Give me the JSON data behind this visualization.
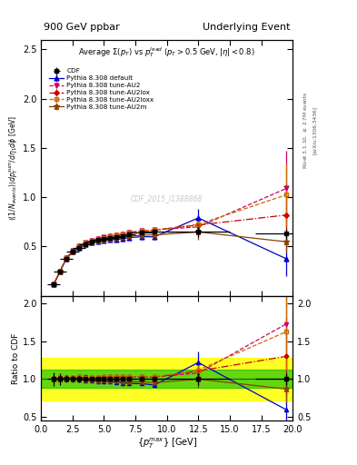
{
  "title_left": "900 GeV ppbar",
  "title_right": "Underlying Event",
  "plot_title": "Average $\\Sigma(p_T)$ vs $p_T^{lead}$ ($p_T > 0.5$ GeV, $|\\eta| < 0.8$)",
  "xlabel": "$\\{p_T^{max}\\}$ [GeV]",
  "ylabel": "$\\langle(1/N_{events})\\rangle dp_T^{sum}/d\\eta_1 d\\phi$ [GeV]",
  "ylabel_ratio": "Ratio to CDF",
  "right_label1": "Rivet 3.1.10, $\\geq$ 2.7M events",
  "right_label2": "[arXiv:1306.3436]",
  "watermark": "CDF_2015_I1388868",
  "ylim_main": [
    0.0,
    2.6
  ],
  "ylim_ratio": [
    0.45,
    2.1
  ],
  "xlim": [
    0,
    20
  ],
  "yticks_main": [
    0.5,
    1.0,
    1.5,
    2.0,
    2.5
  ],
  "yticks_ratio": [
    0.5,
    1.0,
    1.5,
    2.0
  ],
  "cdf_x": [
    1.0,
    1.5,
    2.0,
    2.5,
    3.0,
    3.5,
    4.0,
    4.5,
    5.0,
    5.5,
    6.0,
    6.5,
    7.0,
    8.0,
    9.0,
    12.5,
    19.5
  ],
  "cdf_y": [
    0.115,
    0.245,
    0.375,
    0.445,
    0.49,
    0.525,
    0.55,
    0.565,
    0.575,
    0.585,
    0.595,
    0.61,
    0.625,
    0.638,
    0.648,
    0.648,
    0.63
  ],
  "cdf_yerr": [
    0.01,
    0.018,
    0.018,
    0.018,
    0.018,
    0.018,
    0.018,
    0.018,
    0.018,
    0.018,
    0.018,
    0.018,
    0.018,
    0.018,
    0.018,
    0.048,
    0.048
  ],
  "cdf_xerr": [
    0.5,
    0.5,
    0.5,
    0.5,
    0.5,
    0.5,
    0.5,
    0.5,
    0.5,
    0.5,
    0.5,
    0.5,
    0.5,
    1.0,
    1.0,
    2.5,
    2.5
  ],
  "py_default_x": [
    1.0,
    1.5,
    2.0,
    2.5,
    3.0,
    3.5,
    4.0,
    4.5,
    5.0,
    5.5,
    6.0,
    6.5,
    7.0,
    8.0,
    9.0,
    12.5,
    19.5
  ],
  "py_default_y": [
    0.115,
    0.245,
    0.375,
    0.445,
    0.488,
    0.518,
    0.538,
    0.55,
    0.558,
    0.565,
    0.572,
    0.58,
    0.59,
    0.6,
    0.598,
    0.79,
    0.375
  ],
  "py_default_yerr": [
    0.003,
    0.006,
    0.006,
    0.006,
    0.006,
    0.006,
    0.006,
    0.006,
    0.006,
    0.006,
    0.006,
    0.006,
    0.006,
    0.01,
    0.012,
    0.095,
    0.175
  ],
  "py_au2_x": [
    1.0,
    1.5,
    2.0,
    2.5,
    3.0,
    3.5,
    4.0,
    4.5,
    5.0,
    5.5,
    6.0,
    6.5,
    7.0,
    8.0,
    9.0,
    12.5,
    19.5
  ],
  "py_au2_y": [
    0.115,
    0.248,
    0.382,
    0.455,
    0.505,
    0.538,
    0.562,
    0.578,
    0.592,
    0.602,
    0.614,
    0.628,
    0.645,
    0.658,
    0.668,
    0.7,
    1.09
  ],
  "py_au2_yerr": [
    0.003,
    0.006,
    0.006,
    0.006,
    0.006,
    0.006,
    0.006,
    0.006,
    0.006,
    0.006,
    0.006,
    0.006,
    0.006,
    0.01,
    0.012,
    0.075,
    0.38
  ],
  "py_au2lox_x": [
    1.0,
    1.5,
    2.0,
    2.5,
    3.0,
    3.5,
    4.0,
    4.5,
    5.0,
    5.5,
    6.0,
    6.5,
    7.0,
    8.0,
    9.0,
    12.5,
    19.5
  ],
  "py_au2lox_y": [
    0.115,
    0.247,
    0.38,
    0.452,
    0.502,
    0.535,
    0.56,
    0.576,
    0.59,
    0.601,
    0.612,
    0.626,
    0.642,
    0.656,
    0.665,
    0.718,
    0.82
  ],
  "py_au2lox_yerr": [
    0.003,
    0.006,
    0.006,
    0.006,
    0.006,
    0.006,
    0.006,
    0.006,
    0.006,
    0.006,
    0.006,
    0.006,
    0.006,
    0.01,
    0.012,
    0.075,
    0.32
  ],
  "py_au2loxx_x": [
    1.0,
    1.5,
    2.0,
    2.5,
    3.0,
    3.5,
    4.0,
    4.5,
    5.0,
    5.5,
    6.0,
    6.5,
    7.0,
    8.0,
    9.0,
    12.5,
    19.5
  ],
  "py_au2loxx_y": [
    0.115,
    0.247,
    0.38,
    0.453,
    0.503,
    0.537,
    0.561,
    0.577,
    0.591,
    0.602,
    0.614,
    0.628,
    0.644,
    0.658,
    0.668,
    0.725,
    1.025
  ],
  "py_au2loxx_yerr": [
    0.003,
    0.006,
    0.006,
    0.006,
    0.006,
    0.006,
    0.006,
    0.006,
    0.006,
    0.006,
    0.006,
    0.006,
    0.006,
    0.01,
    0.012,
    0.075,
    0.32
  ],
  "py_au2m_x": [
    1.0,
    1.5,
    2.0,
    2.5,
    3.0,
    3.5,
    4.0,
    4.5,
    5.0,
    5.5,
    6.0,
    6.5,
    7.0,
    8.0,
    9.0,
    12.5,
    19.5
  ],
  "py_au2m_y": [
    0.115,
    0.245,
    0.377,
    0.448,
    0.492,
    0.522,
    0.545,
    0.558,
    0.568,
    0.576,
    0.584,
    0.594,
    0.605,
    0.615,
    0.618,
    0.648,
    0.548
  ],
  "py_au2m_yerr": [
    0.003,
    0.006,
    0.006,
    0.006,
    0.006,
    0.006,
    0.006,
    0.006,
    0.006,
    0.006,
    0.006,
    0.006,
    0.006,
    0.01,
    0.012,
    0.075,
    0.11
  ],
  "color_cdf": "#000000",
  "color_default": "#0000cc",
  "color_au2": "#cc0066",
  "color_au2lox": "#cc0000",
  "color_au2loxx": "#cc6600",
  "color_au2m": "#884400",
  "band_green_lo": 0.88,
  "band_green_hi": 1.12,
  "band_yellow_lo": 0.72,
  "band_yellow_hi": 1.28
}
